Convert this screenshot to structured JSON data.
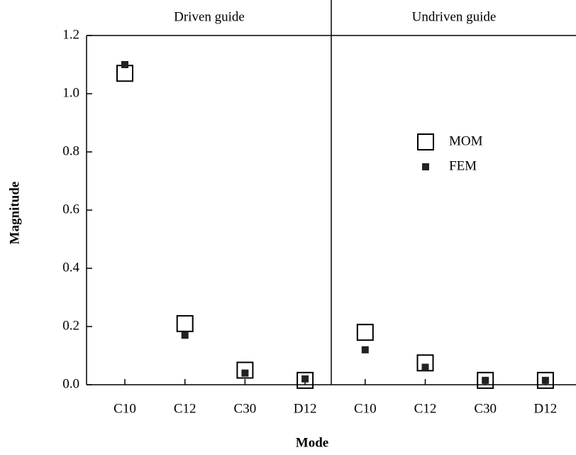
{
  "chart_data": {
    "type": "scatter",
    "groups": [
      "Driven guide",
      "Undriven guide"
    ],
    "categories": [
      "C10",
      "C12",
      "C30",
      "D12",
      "C10",
      "C12",
      "C30",
      "D12"
    ],
    "x_label": "Mode",
    "y_label": "Magnitude",
    "ylim": [
      0,
      1.2
    ],
    "yticks": [
      {
        "value": 0,
        "label": "0.0"
      },
      0.2,
      0.4,
      0.6,
      0.8,
      {
        "value": 1,
        "label": "1.0"
      },
      1.2
    ],
    "legend": "upper right",
    "series": [
      {
        "name": "MOM",
        "color": "#000000",
        "marker": "open-square",
        "values": [
          1.07,
          0.21,
          0.05,
          0.015,
          0.18,
          0.075,
          0.015,
          0.015
        ]
      },
      {
        "name": "FEM",
        "color": "#222222",
        "marker": "filled-square",
        "values": [
          1.1,
          0.17,
          0.04,
          0.02,
          0.12,
          0.06,
          0.015,
          0.015
        ]
      }
    ]
  }
}
